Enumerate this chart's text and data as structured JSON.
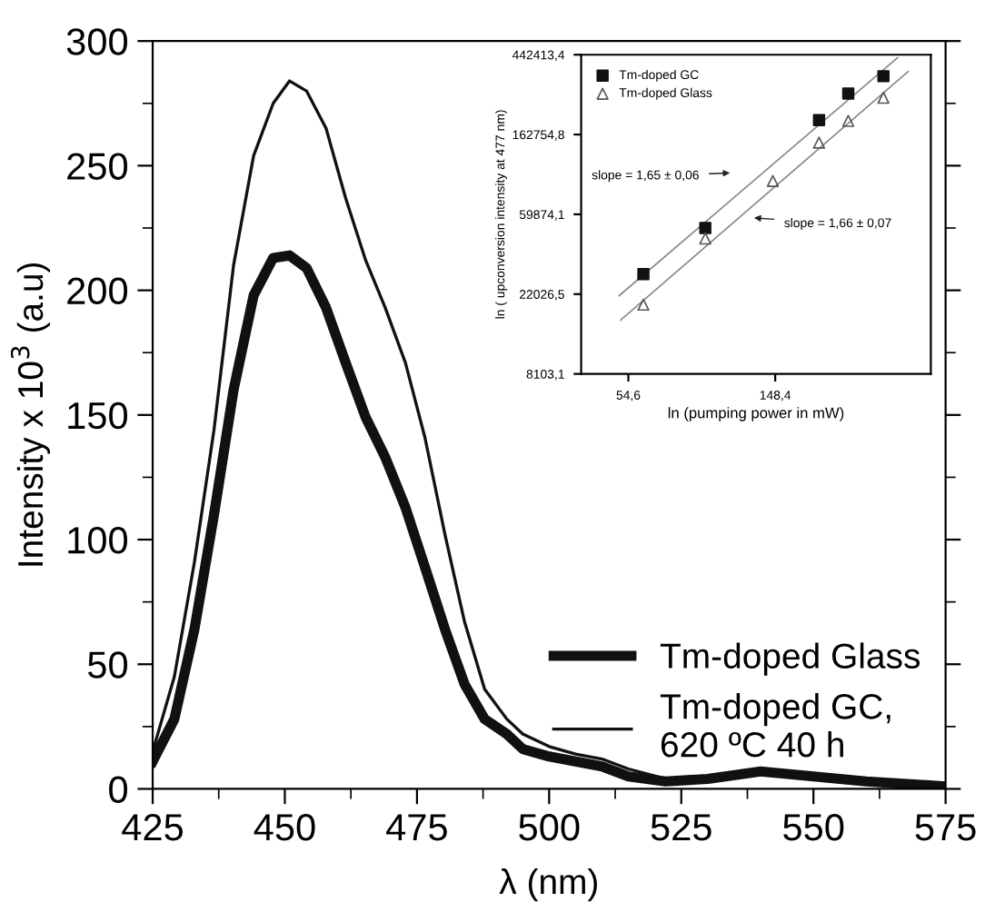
{
  "chart_data": [
    {
      "type": "line",
      "xlabel": "λ (nm)",
      "ylabel": "Intensity x 10$^{3}$ (a.u)",
      "xlim": [
        425,
        575
      ],
      "ylim": [
        0,
        300
      ],
      "xticks": [
        425,
        {
          "value": 437.5,
          "label": null
        },
        450,
        {
          "value": 462.5,
          "label": null
        },
        475,
        {
          "value": 487.5,
          "label": null
        },
        500,
        {
          "value": 512.5,
          "label": null
        },
        525,
        {
          "value": 537.5,
          "label": null
        },
        550,
        {
          "value": 562.5,
          "label": null
        },
        575
      ],
      "yticks": [
        0,
        {
          "value": 25,
          "label": null
        },
        50,
        {
          "value": 75,
          "label": null
        },
        100,
        {
          "value": 125,
          "label": null
        },
        150,
        {
          "value": 175,
          "label": null
        },
        200,
        {
          "value": 225,
          "label": null
        },
        250,
        {
          "value": 275,
          "label": null
        },
        300
      ],
      "x": [
        425,
        429.1,
        432.9,
        436.6,
        440.3,
        444.1,
        447.8,
        450.9,
        454.1,
        457.8,
        461.5,
        465.3,
        469,
        472.8,
        476.5,
        480.3,
        484,
        487.8,
        492,
        495,
        500,
        505,
        510,
        515,
        522,
        530,
        540,
        550,
        560,
        575
      ],
      "series": [
        {
          "name": "Tm-doped Glass",
          "color": "#111111",
          "values": [
            11,
            28,
            64,
            110,
            160,
            198,
            213,
            214,
            209,
            193,
            171,
            149,
            133,
            113,
            89,
            64,
            42,
            28,
            22,
            16,
            13,
            11,
            9,
            5,
            3,
            4,
            7,
            5,
            3,
            1
          ]
        },
        {
          "name": "Tm-doped GC,\n620 ºC 40 h",
          "color": "#111111",
          "values": [
            15,
            45,
            91,
            144,
            210,
            254,
            275,
            284,
            280,
            265,
            237,
            212,
            193,
            171,
            141,
            102,
            67,
            40,
            28,
            22,
            17,
            14,
            12,
            8,
            4,
            5,
            7,
            5,
            3,
            2
          ]
        }
      ],
      "legend": "bottom right",
      "grid": false,
      "line_style": "solid",
      "marker": "none"
    },
    {
      "type": "scatter",
      "xlabel": "ln (pumping power in mW)",
      "ylabel": "ln ( upconversion intensity at 477 nm)",
      "log": "xy",
      "xlim": [
        39.6,
        428
      ],
      "ylim": [
        8103.1,
        442413.4
      ],
      "xticks": [
        {
          "value": 54.6,
          "label": "54,6"
        },
        {
          "value": 148.4,
          "label": "148,4"
        }
      ],
      "yticks": [
        {
          "value": 8103.1,
          "label": "8103,1"
        },
        {
          "value": 22026.5,
          "label": "22026,5"
        },
        {
          "value": 59874.1,
          "label": "59874,1"
        },
        {
          "value": 162754.8,
          "label": "162754,8"
        },
        {
          "value": 442413.4,
          "label": "442413,4"
        }
      ],
      "series": [
        {
          "name": "Tm-doped GC",
          "color": "#111111",
          "marker": "square",
          "x": [
            60.5,
            92.2,
            200,
            244,
            310
          ],
          "values": [
            28300,
            50400,
            195000,
            272000,
            338000
          ]
        },
        {
          "name": "Tm-doped Glass",
          "color": "#555555",
          "marker": "triangle",
          "x": [
            60.5,
            92.2,
            146,
            200,
            244,
            310
          ],
          "values": [
            19300,
            44200,
            91000,
            147000,
            193000,
            258000
          ]
        },
        {
          "type": "line",
          "color": "#888888",
          "x": [
            51.3,
            341
          ],
          "values": [
            21600,
            426000
          ]
        },
        {
          "type": "line",
          "color": "#888888",
          "x": [
            51.8,
            367
          ],
          "values": [
            15900,
            359000
          ]
        }
      ],
      "annotations": [
        "slope = 1,65 ± 0,06",
        "slope = 1,66 ± 0,07"
      ],
      "legend": "top left",
      "grid": false
    }
  ]
}
